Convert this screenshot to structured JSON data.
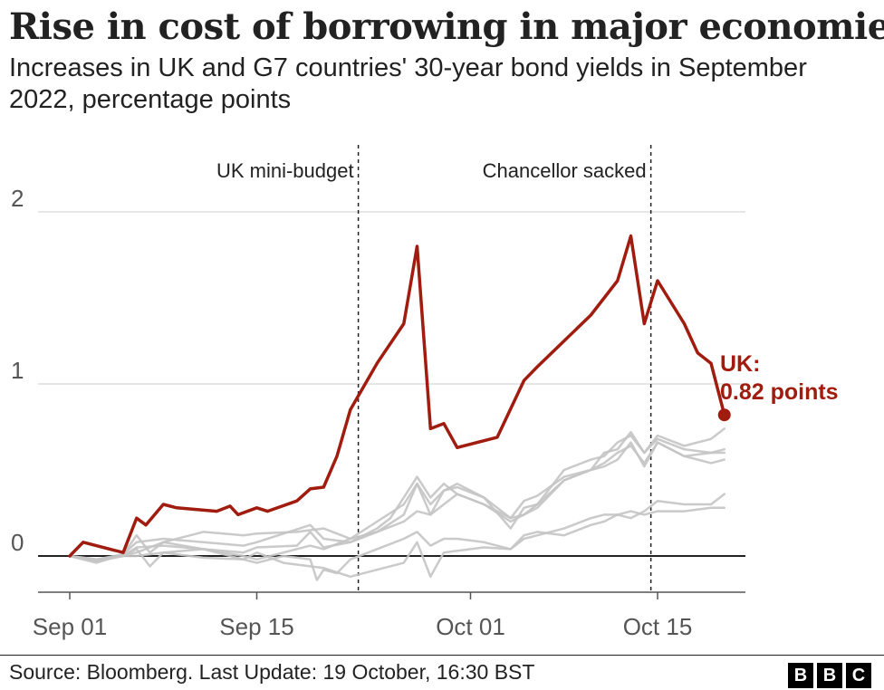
{
  "header": {
    "title": "Rise in cost of borrowing in major economies",
    "subtitle": "Increases in UK and G7 countries' 30-year bond yields in September 2022, percentage points"
  },
  "footer": {
    "source": "Source: Bloomberg. Last Update: 19 October, 16:30 BST",
    "logo_letters": [
      "B",
      "B",
      "C"
    ]
  },
  "chart_data": {
    "type": "line",
    "ylim": [
      -0.2,
      2.1
    ],
    "y_ticks": [
      {
        "value": 0,
        "label": "0"
      },
      {
        "value": 1,
        "label": "1"
      },
      {
        "value": 2,
        "label": "2"
      }
    ],
    "x_ticks": [
      {
        "value": 1,
        "label": "Sep 01"
      },
      {
        "value": 15,
        "label": "Sep 15"
      },
      {
        "value": 31,
        "label": "Oct 01"
      },
      {
        "value": 45,
        "label": "Oct 15"
      }
    ],
    "x_note": "x values are days counted from 1 September 2022 (Sep 01 = 1, Oct 01 = 31)",
    "events": [
      {
        "x": 22.6,
        "label": "UK mini-budget"
      },
      {
        "x": 44.5,
        "label": "Chancellor sacked"
      }
    ],
    "end_label": {
      "line1": "UK:",
      "line2": "0.82 points"
    },
    "colors": {
      "uk": "#a01c0f",
      "g7": "#c4c4c4",
      "grid": "#cccccc",
      "zero": "#222222"
    },
    "series": [
      {
        "name": "UK",
        "highlight": true,
        "points": [
          [
            1,
            0
          ],
          [
            2,
            0.08
          ],
          [
            5,
            0.02
          ],
          [
            6,
            0.22
          ],
          [
            6.7,
            0.18
          ],
          [
            8,
            0.3
          ],
          [
            9,
            0.28
          ],
          [
            12,
            0.26
          ],
          [
            13,
            0.29
          ],
          [
            13.6,
            0.24
          ],
          [
            15,
            0.28
          ],
          [
            15.8,
            0.26
          ],
          [
            18,
            0.32
          ],
          [
            19,
            0.39
          ],
          [
            20,
            0.4
          ],
          [
            21,
            0.58
          ],
          [
            22,
            0.85
          ],
          [
            24,
            1.12
          ],
          [
            26,
            1.35
          ],
          [
            27,
            1.8
          ],
          [
            28,
            0.74
          ],
          [
            29,
            0.77
          ],
          [
            30,
            0.63
          ],
          [
            33,
            0.69
          ],
          [
            35,
            1.02
          ],
          [
            36,
            1.1
          ],
          [
            40,
            1.4
          ],
          [
            42,
            1.6
          ],
          [
            43,
            1.86
          ],
          [
            44,
            1.35
          ],
          [
            45,
            1.6
          ],
          [
            47,
            1.35
          ],
          [
            48,
            1.18
          ],
          [
            49,
            1.12
          ],
          [
            50,
            0.82
          ]
        ]
      },
      {
        "name": "",
        "points": [
          [
            1,
            0
          ],
          [
            3,
            -0.02
          ],
          [
            5,
            0.01
          ],
          [
            6,
            0.08
          ],
          [
            8,
            0.1
          ],
          [
            11,
            0.08
          ],
          [
            14,
            0.06
          ],
          [
            15,
            0.08
          ],
          [
            19,
            0.18
          ],
          [
            20,
            0.1
          ],
          [
            22,
            0.08
          ],
          [
            24,
            0.16
          ],
          [
            25,
            0.22
          ],
          [
            26,
            0.34
          ],
          [
            27,
            0.46
          ],
          [
            28,
            0.34
          ],
          [
            29,
            0.42
          ],
          [
            30,
            0.36
          ],
          [
            32,
            0.3
          ],
          [
            34,
            0.22
          ],
          [
            35,
            0.32
          ],
          [
            36,
            0.35
          ],
          [
            38,
            0.46
          ],
          [
            40,
            0.5
          ],
          [
            41,
            0.6
          ],
          [
            42,
            0.62
          ],
          [
            43,
            0.72
          ],
          [
            44,
            0.6
          ],
          [
            45,
            0.7
          ],
          [
            47,
            0.64
          ],
          [
            49,
            0.68
          ],
          [
            50,
            0.74
          ]
        ]
      },
      {
        "name": "",
        "points": [
          [
            1,
            0
          ],
          [
            3,
            -0.04
          ],
          [
            5,
            0.01
          ],
          [
            6,
            0.12
          ],
          [
            7,
            0.02
          ],
          [
            8,
            0.08
          ],
          [
            11,
            0.14
          ],
          [
            14,
            0.12
          ],
          [
            15,
            0.13
          ],
          [
            18,
            0.14
          ],
          [
            20,
            0.16
          ],
          [
            22,
            0.1
          ],
          [
            24,
            0.2
          ],
          [
            26,
            0.3
          ],
          [
            27,
            0.42
          ],
          [
            28,
            0.3
          ],
          [
            29,
            0.38
          ],
          [
            30,
            0.42
          ],
          [
            32,
            0.34
          ],
          [
            34,
            0.16
          ],
          [
            35,
            0.28
          ],
          [
            36,
            0.3
          ],
          [
            38,
            0.5
          ],
          [
            40,
            0.56
          ],
          [
            41,
            0.58
          ],
          [
            42,
            0.66
          ],
          [
            43,
            0.7
          ],
          [
            44,
            0.6
          ],
          [
            45,
            0.68
          ],
          [
            47,
            0.62
          ],
          [
            49,
            0.6
          ],
          [
            50,
            0.6
          ]
        ]
      },
      {
        "name": "",
        "points": [
          [
            1,
            0
          ],
          [
            3,
            -0.03
          ],
          [
            5,
            0.0
          ],
          [
            6,
            0.04
          ],
          [
            7,
            -0.06
          ],
          [
            8,
            0.02
          ],
          [
            11,
            0.04
          ],
          [
            14,
            0.02
          ],
          [
            15,
            0.05
          ],
          [
            18,
            0.06
          ],
          [
            19,
            0.14
          ],
          [
            20,
            0.05
          ],
          [
            22,
            0.08
          ],
          [
            24,
            0.14
          ],
          [
            26,
            0.2
          ],
          [
            27,
            0.26
          ],
          [
            28,
            0.24
          ],
          [
            29,
            0.38
          ],
          [
            30,
            0.4
          ],
          [
            32,
            0.34
          ],
          [
            34,
            0.22
          ],
          [
            35,
            0.24
          ],
          [
            36,
            0.3
          ],
          [
            38,
            0.44
          ],
          [
            40,
            0.5
          ],
          [
            41,
            0.52
          ],
          [
            42,
            0.56
          ],
          [
            43,
            0.66
          ],
          [
            44,
            0.52
          ],
          [
            45,
            0.66
          ],
          [
            47,
            0.58
          ],
          [
            49,
            0.6
          ],
          [
            50,
            0.62
          ]
        ]
      },
      {
        "name": "",
        "points": [
          [
            1,
            0
          ],
          [
            3,
            -0.02
          ],
          [
            5,
            0.0
          ],
          [
            6,
            0.05
          ],
          [
            8,
            0.06
          ],
          [
            11,
            0.04
          ],
          [
            14,
            0.0
          ],
          [
            15,
            -0.02
          ],
          [
            17,
            0.02
          ],
          [
            19,
            0.06
          ],
          [
            20,
            0.04
          ],
          [
            22,
            0.1
          ],
          [
            24,
            0.14
          ],
          [
            26,
            0.24
          ],
          [
            27,
            0.42
          ],
          [
            28,
            0.24
          ],
          [
            29,
            0.3
          ],
          [
            30,
            0.36
          ],
          [
            32,
            0.3
          ],
          [
            34,
            0.2
          ],
          [
            35,
            0.24
          ],
          [
            36,
            0.28
          ],
          [
            38,
            0.44
          ],
          [
            40,
            0.5
          ],
          [
            41,
            0.54
          ],
          [
            42,
            0.6
          ],
          [
            43,
            0.64
          ],
          [
            44,
            0.54
          ],
          [
            45,
            0.66
          ],
          [
            47,
            0.58
          ],
          [
            49,
            0.54
          ],
          [
            50,
            0.56
          ]
        ]
      },
      {
        "name": "",
        "points": [
          [
            1,
            0
          ],
          [
            3,
            -0.03
          ],
          [
            5,
            0.0
          ],
          [
            6,
            0.02
          ],
          [
            8,
            0.08
          ],
          [
            11,
            0.04
          ],
          [
            14,
            -0.02
          ],
          [
            15,
            -0.04
          ],
          [
            17,
            0.0
          ],
          [
            19,
            -0.02
          ],
          [
            19.5,
            -0.14
          ],
          [
            20,
            -0.08
          ],
          [
            21,
            -0.1
          ],
          [
            22,
            -0.02
          ],
          [
            24,
            0.04
          ],
          [
            26,
            0.1
          ],
          [
            27,
            0.14
          ],
          [
            28,
            0.06
          ],
          [
            29,
            0.1
          ],
          [
            30,
            0.1
          ],
          [
            32,
            0.08
          ],
          [
            34,
            0.04
          ],
          [
            35,
            0.1
          ],
          [
            36,
            0.12
          ],
          [
            38,
            0.16
          ],
          [
            40,
            0.22
          ],
          [
            41,
            0.24
          ],
          [
            42,
            0.24
          ],
          [
            43,
            0.26
          ],
          [
            44,
            0.24
          ],
          [
            45,
            0.26
          ],
          [
            47,
            0.26
          ],
          [
            49,
            0.28
          ],
          [
            50,
            0.28
          ]
        ]
      },
      {
        "name": "",
        "points": [
          [
            1,
            0
          ],
          [
            3,
            -0.03
          ],
          [
            5,
            0.0
          ],
          [
            6,
            0.0
          ],
          [
            8,
            0.02
          ],
          [
            11,
            -0.01
          ],
          [
            14,
            -0.02
          ],
          [
            15,
            0.02
          ],
          [
            17,
            -0.04
          ],
          [
            19,
            -0.06
          ],
          [
            20,
            -0.07
          ],
          [
            22,
            -0.12
          ],
          [
            24,
            -0.08
          ],
          [
            26,
            -0.04
          ],
          [
            27,
            0.08
          ],
          [
            28,
            -0.12
          ],
          [
            29,
            0.02
          ],
          [
            30,
            0.03
          ],
          [
            32,
            0.05
          ],
          [
            34,
            0.04
          ],
          [
            35,
            0.12
          ],
          [
            36,
            0.14
          ],
          [
            38,
            0.12
          ],
          [
            40,
            0.18
          ],
          [
            41,
            0.2
          ],
          [
            42,
            0.24
          ],
          [
            43,
            0.22
          ],
          [
            44,
            0.26
          ],
          [
            45,
            0.32
          ],
          [
            47,
            0.3
          ],
          [
            49,
            0.3
          ],
          [
            50,
            0.36
          ]
        ]
      }
    ]
  }
}
